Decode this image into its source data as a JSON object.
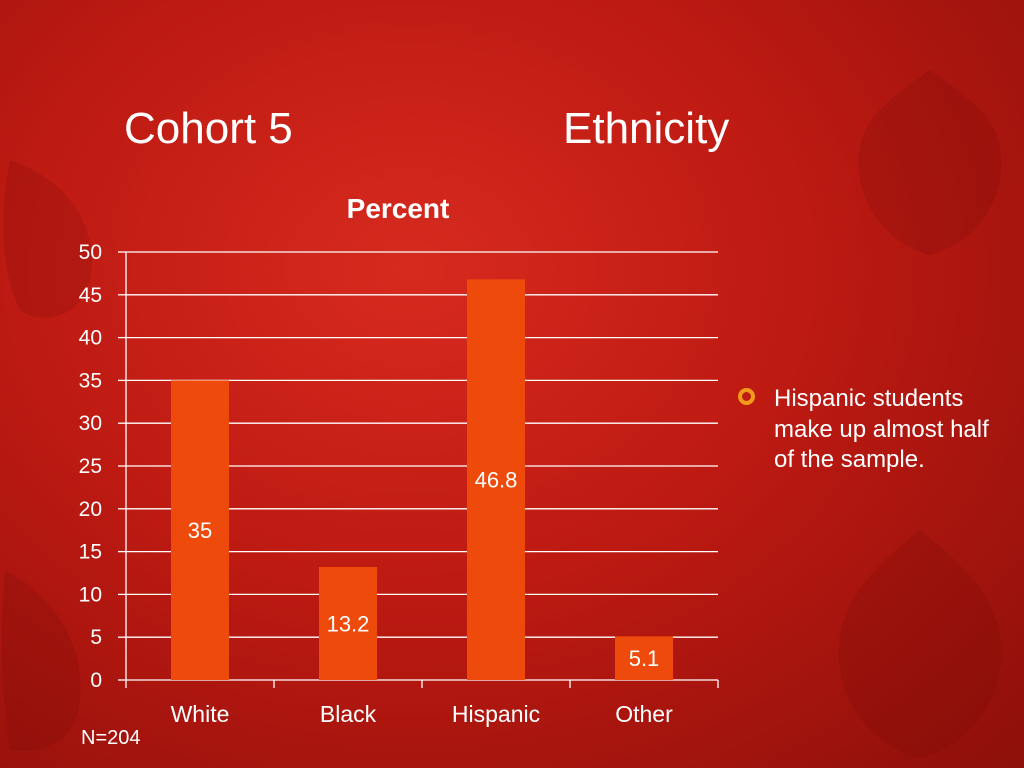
{
  "slide": {
    "title_left": "Cohort 5",
    "title_right": "Ethnicity",
    "bullet_text": "Hispanic students make up almost half of the sample.",
    "footnote": "N=204"
  },
  "colors": {
    "background": "#c41f16",
    "bar": "#ee4a0b",
    "gridline": "#ffffff",
    "text": "#ffffff",
    "bullet_accent": "#f29b1b"
  },
  "chart_data": {
    "type": "bar",
    "title": "Percent",
    "categories": [
      "White",
      "Black",
      "Hispanic",
      "Other"
    ],
    "values": [
      35,
      13.2,
      46.8,
      5.1
    ],
    "data_labels": [
      "35",
      "13.2",
      "46.8",
      "5.1"
    ],
    "ylim": [
      0,
      50
    ],
    "yticks": [
      0,
      5,
      10,
      15,
      20,
      25,
      30,
      35,
      40,
      45,
      50
    ],
    "grid": true,
    "legend": "none"
  }
}
